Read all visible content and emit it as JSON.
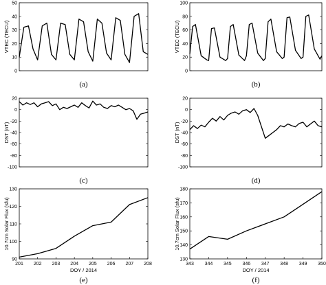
{
  "chart_data": [
    {
      "id": "a",
      "caption": "(a)",
      "type": "line",
      "ylabel": "VTEC (TECU)",
      "xlabel": "",
      "xlim": [
        201,
        208
      ],
      "ylim": [
        0,
        50
      ],
      "yticks": [
        0,
        10,
        20,
        30,
        40,
        50
      ],
      "xticks": [],
      "xticklabels": [],
      "series": [
        {
          "color": "#000000",
          "x": [
            201.0,
            201.25,
            201.5,
            201.75,
            202.0,
            202.25,
            202.5,
            202.75,
            203.0,
            203.25,
            203.5,
            203.75,
            204.0,
            204.25,
            204.5,
            204.75,
            205.0,
            205.25,
            205.5,
            205.75,
            206.0,
            206.25,
            206.5,
            206.75,
            207.0,
            207.25,
            207.5,
            207.75,
            208.0
          ],
          "y": [
            10,
            32,
            33,
            16,
            8,
            33,
            35,
            12,
            8,
            35,
            34,
            12,
            8,
            38,
            36,
            14,
            7,
            38,
            35,
            13,
            8,
            39,
            37,
            12,
            6,
            40,
            42,
            14,
            12
          ]
        }
      ]
    },
    {
      "id": "b",
      "caption": "(b)",
      "type": "line",
      "ylabel": "VTEC (TECU)",
      "xlabel": "",
      "xlim": [
        343,
        350
      ],
      "ylim": [
        0,
        100
      ],
      "yticks": [
        0,
        20,
        40,
        60,
        80,
        100
      ],
      "xticks": [],
      "xticklabels": [],
      "series": [
        {
          "color": "#000000",
          "x": [
            343.0,
            343.15,
            343.3,
            343.6,
            343.9,
            344.0,
            344.15,
            344.3,
            344.6,
            344.9,
            345.0,
            345.15,
            345.3,
            345.6,
            345.9,
            346.0,
            346.15,
            346.3,
            346.6,
            346.9,
            347.0,
            347.15,
            347.3,
            347.6,
            347.9,
            348.0,
            348.15,
            348.3,
            348.6,
            348.9,
            349.0,
            349.15,
            349.3,
            349.6,
            349.9,
            350.0
          ],
          "y": [
            25,
            65,
            68,
            22,
            16,
            15,
            62,
            63,
            20,
            15,
            18,
            65,
            68,
            23,
            15,
            22,
            68,
            70,
            26,
            15,
            18,
            72,
            76,
            28,
            18,
            20,
            78,
            79,
            30,
            18,
            20,
            80,
            82,
            32,
            17,
            22
          ]
        }
      ]
    },
    {
      "id": "c",
      "caption": "(c)",
      "type": "line",
      "ylabel": "DST (nT)",
      "xlabel": "",
      "xlim": [
        201,
        208
      ],
      "ylim": [
        -100,
        20
      ],
      "yticks": [
        20,
        0,
        -20,
        -40,
        -60,
        -80,
        -100
      ],
      "xticks": [],
      "xticklabels": [],
      "series": [
        {
          "color": "#000000",
          "x": [
            201.0,
            201.2,
            201.4,
            201.6,
            201.8,
            202.0,
            202.2,
            202.4,
            202.6,
            202.8,
            203.0,
            203.2,
            203.4,
            203.6,
            203.8,
            204.0,
            204.2,
            204.4,
            204.6,
            204.8,
            205.0,
            205.2,
            205.4,
            205.6,
            205.8,
            206.0,
            206.2,
            206.4,
            206.6,
            206.8,
            207.0,
            207.2,
            207.4,
            207.6,
            207.8,
            208.0
          ],
          "y": [
            14,
            8,
            12,
            9,
            12,
            5,
            10,
            12,
            14,
            7,
            10,
            0,
            4,
            2,
            5,
            8,
            4,
            12,
            7,
            3,
            15,
            8,
            10,
            4,
            2,
            7,
            5,
            8,
            4,
            0,
            2,
            -2,
            -17,
            -8,
            -6,
            -4
          ]
        }
      ]
    },
    {
      "id": "d",
      "caption": "(d)",
      "type": "line",
      "ylabel": "DST (nT)",
      "xlabel": "",
      "xlim": [
        343,
        350
      ],
      "ylim": [
        -100,
        20
      ],
      "yticks": [
        20,
        0,
        -20,
        -40,
        -60,
        -80,
        -100
      ],
      "xticks": [],
      "xticklabels": [],
      "series": [
        {
          "color": "#000000",
          "x": [
            343.0,
            343.2,
            343.4,
            343.6,
            343.8,
            344.0,
            344.2,
            344.4,
            344.6,
            344.8,
            345.0,
            345.2,
            345.4,
            345.6,
            345.8,
            346.0,
            346.2,
            346.4,
            346.6,
            346.8,
            347.0,
            347.2,
            347.4,
            347.6,
            347.8,
            348.0,
            348.2,
            348.4,
            348.6,
            348.8,
            349.0,
            349.2,
            349.4,
            349.6,
            349.8,
            350.0
          ],
          "y": [
            -35,
            -28,
            -33,
            -27,
            -30,
            -22,
            -15,
            -20,
            -12,
            -18,
            -10,
            -6,
            -4,
            -8,
            -2,
            0,
            -5,
            2,
            -10,
            -30,
            -50,
            -45,
            -40,
            -35,
            -28,
            -30,
            -25,
            -28,
            -30,
            -24,
            -22,
            -30,
            -25,
            -20,
            -28,
            -30
          ]
        }
      ]
    },
    {
      "id": "e",
      "caption": "(e)",
      "type": "line",
      "ylabel": "10.7cm Solar Flux (sfu)",
      "xlabel": "DOY / 2014",
      "xlim": [
        201,
        208
      ],
      "ylim": [
        90,
        130
      ],
      "yticks": [
        90,
        100,
        110,
        120,
        130
      ],
      "xticks": [
        201,
        202,
        203,
        204,
        205,
        206,
        207,
        208
      ],
      "xticklabels": [
        "201",
        "202",
        "203",
        "204",
        "205",
        "206",
        "207",
        "208"
      ],
      "series": [
        {
          "color": "#000000",
          "x": [
            201,
            202,
            203,
            204,
            205,
            206,
            207,
            208
          ],
          "y": [
            91,
            93,
            96,
            103,
            109,
            111,
            121,
            125
          ]
        }
      ]
    },
    {
      "id": "f",
      "caption": "(f)",
      "type": "line",
      "ylabel": "10.7cm Solar Flux (sfu)",
      "xlabel": "DOY / 2014",
      "xlim": [
        343,
        350
      ],
      "ylim": [
        130,
        180
      ],
      "yticks": [
        130,
        140,
        150,
        160,
        170,
        180
      ],
      "xticks": [
        343,
        344,
        345,
        346,
        347,
        348,
        349,
        350
      ],
      "xticklabels": [
        "343",
        "344",
        "345",
        "346",
        "347",
        "348",
        "349",
        "350"
      ],
      "series": [
        {
          "color": "#000000",
          "x": [
            343,
            344,
            345,
            346,
            347,
            348,
            349,
            350
          ],
          "y": [
            137,
            146,
            144,
            150,
            155,
            160,
            169,
            178
          ]
        }
      ]
    }
  ]
}
